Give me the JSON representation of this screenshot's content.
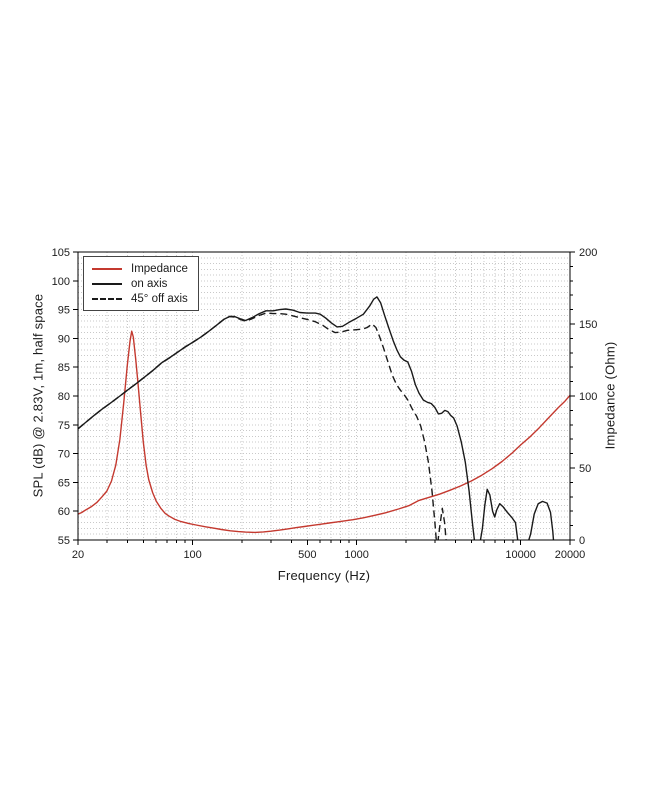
{
  "chart_data": {
    "type": "line",
    "title": "",
    "xlabel": "Frequency (Hz)",
    "ylabel_left": "SPL (dB) @ 2.83V, 1m, half space",
    "ylabel_right": "Impedance (Ohm)",
    "x_scale": "log",
    "xlim": [
      20,
      20000
    ],
    "ylim_left": [
      55,
      105
    ],
    "ylim_right": [
      0,
      200
    ],
    "x_labeled_ticks": [
      20,
      100,
      500,
      1000,
      10000,
      20000
    ],
    "y_left_major_step": 5,
    "y_left_minor_step": 1,
    "y_right_major_step": 50,
    "y_right_minor_step": 10,
    "grid": {
      "on": true,
      "color": "#c9c9c9",
      "style": "dotted"
    },
    "legend": {
      "position": "top-left",
      "items": [
        {
          "label": "Impedance",
          "color": "#c4392f",
          "dash": "solid"
        },
        {
          "label": "on axis",
          "color": "#1a1a1a",
          "dash": "solid"
        },
        {
          "label": "45° off axis",
          "color": "#1a1a1a",
          "dash": "dashed"
        }
      ]
    },
    "series": [
      {
        "name": "Impedance",
        "axis": "right",
        "unit": "Ohm",
        "color": "#c4392f",
        "dash": "solid",
        "points": [
          [
            20,
            18
          ],
          [
            21,
            19
          ],
          [
            22,
            20.5
          ],
          [
            24,
            23
          ],
          [
            26,
            26
          ],
          [
            28,
            30
          ],
          [
            30,
            34
          ],
          [
            32,
            41
          ],
          [
            34,
            52
          ],
          [
            36,
            70
          ],
          [
            38,
            95
          ],
          [
            40,
            122
          ],
          [
            41.5,
            138
          ],
          [
            42.5,
            145
          ],
          [
            43.5,
            141
          ],
          [
            45,
            125
          ],
          [
            46.5,
            108
          ],
          [
            48,
            90
          ],
          [
            50,
            68
          ],
          [
            52,
            52
          ],
          [
            54,
            42
          ],
          [
            57,
            33
          ],
          [
            60,
            27
          ],
          [
            64,
            22
          ],
          [
            68,
            18.5
          ],
          [
            72,
            16.5
          ],
          [
            78,
            14.3
          ],
          [
            85,
            12.8
          ],
          [
            95,
            11.4
          ],
          [
            105,
            10.4
          ],
          [
            120,
            9.2
          ],
          [
            135,
            8.2
          ],
          [
            150,
            7.3
          ],
          [
            170,
            6.4
          ],
          [
            190,
            5.8
          ],
          [
            210,
            5.5
          ],
          [
            240,
            5.3
          ],
          [
            270,
            5.6
          ],
          [
            300,
            6.1
          ],
          [
            340,
            6.9
          ],
          [
            380,
            7.7
          ],
          [
            430,
            8.6
          ],
          [
            480,
            9.4
          ],
          [
            540,
            10.2
          ],
          [
            600,
            10.9
          ],
          [
            680,
            11.8
          ],
          [
            760,
            12.6
          ],
          [
            850,
            13.3
          ],
          [
            950,
            14.1
          ],
          [
            1100,
            15.4
          ],
          [
            1300,
            17.2
          ],
          [
            1500,
            18.9
          ],
          [
            1800,
            21.5
          ],
          [
            2100,
            24
          ],
          [
            2400,
            27.5
          ],
          [
            2800,
            29.8
          ],
          [
            3200,
            31.8
          ],
          [
            3700,
            34.5
          ],
          [
            4300,
            37.5
          ],
          [
            5000,
            41
          ],
          [
            5800,
            45
          ],
          [
            6700,
            49.5
          ],
          [
            7700,
            54.5
          ],
          [
            8900,
            60.5
          ],
          [
            10000,
            66
          ],
          [
            11500,
            72
          ],
          [
            13000,
            78
          ],
          [
            15000,
            85.5
          ],
          [
            17000,
            92
          ],
          [
            18500,
            96
          ],
          [
            20000,
            100.5
          ]
        ]
      },
      {
        "name": "on axis",
        "axis": "left",
        "unit": "dB",
        "color": "#1a1a1a",
        "dash": "solid",
        "points": [
          [
            20,
            74.3
          ],
          [
            22,
            75.3
          ],
          [
            25,
            76.6
          ],
          [
            28,
            77.7
          ],
          [
            32,
            78.9
          ],
          [
            36,
            80
          ],
          [
            40,
            81
          ],
          [
            45,
            82.1
          ],
          [
            50,
            83.1
          ],
          [
            57,
            84.4
          ],
          [
            65,
            85.8
          ],
          [
            72,
            86.6
          ],
          [
            80,
            87.5
          ],
          [
            90,
            88.5
          ],
          [
            100,
            89.3
          ],
          [
            112,
            90.2
          ],
          [
            125,
            91.2
          ],
          [
            140,
            92.3
          ],
          [
            155,
            93.3
          ],
          [
            168,
            93.8
          ],
          [
            180,
            93.8
          ],
          [
            195,
            93.4
          ],
          [
            210,
            93.1
          ],
          [
            230,
            93.6
          ],
          [
            255,
            94.3
          ],
          [
            280,
            94.8
          ],
          [
            310,
            94.8
          ],
          [
            340,
            95
          ],
          [
            370,
            95.1
          ],
          [
            410,
            94.9
          ],
          [
            450,
            94.5
          ],
          [
            500,
            94.4
          ],
          [
            560,
            94.4
          ],
          [
            600,
            94.2
          ],
          [
            650,
            93.5
          ],
          [
            700,
            92.7
          ],
          [
            760,
            92
          ],
          [
            820,
            92.1
          ],
          [
            900,
            92.8
          ],
          [
            1000,
            93.5
          ],
          [
            1100,
            94.2
          ],
          [
            1200,
            95.6
          ],
          [
            1270,
            96.8
          ],
          [
            1330,
            97.2
          ],
          [
            1400,
            96.2
          ],
          [
            1480,
            94
          ],
          [
            1570,
            91.8
          ],
          [
            1670,
            89.6
          ],
          [
            1760,
            88
          ],
          [
            1850,
            86.8
          ],
          [
            1950,
            86.2
          ],
          [
            2050,
            85.9
          ],
          [
            2160,
            84.3
          ],
          [
            2280,
            82
          ],
          [
            2400,
            80.5
          ],
          [
            2550,
            79.3
          ],
          [
            2700,
            78.9
          ],
          [
            2850,
            78.7
          ],
          [
            3000,
            78
          ],
          [
            3150,
            76.9
          ],
          [
            3300,
            77
          ],
          [
            3450,
            77.5
          ],
          [
            3600,
            77.3
          ],
          [
            3750,
            76.6
          ],
          [
            3900,
            76.2
          ],
          [
            4100,
            74.8
          ],
          [
            4350,
            72
          ],
          [
            4600,
            68.5
          ],
          [
            4850,
            63.5
          ],
          [
            5100,
            57.5
          ],
          [
            5300,
            53.5
          ],
          [
            5600,
            53.8
          ],
          [
            5850,
            57
          ],
          [
            6050,
            61
          ],
          [
            6250,
            63.8
          ],
          [
            6500,
            62.8
          ],
          [
            6750,
            60
          ],
          [
            6950,
            59
          ],
          [
            7150,
            60.2
          ],
          [
            7450,
            61.3
          ],
          [
            7800,
            60.8
          ],
          [
            8300,
            59.8
          ],
          [
            8900,
            58.8
          ],
          [
            9300,
            58
          ],
          [
            9600,
            55
          ],
          [
            9900,
            52.5
          ],
          [
            10800,
            53.5
          ],
          [
            11500,
            56
          ],
          [
            12100,
            59.5
          ],
          [
            12800,
            61.3
          ],
          [
            13600,
            61.7
          ],
          [
            14500,
            61.4
          ],
          [
            15200,
            59.8
          ],
          [
            15700,
            56.5
          ],
          [
            16100,
            52.5
          ],
          [
            17500,
            50
          ],
          [
            20000,
            50
          ]
        ]
      },
      {
        "name": "45° off axis",
        "axis": "left",
        "unit": "dB",
        "color": "#1a1a1a",
        "dash": "dashed",
        "points": [
          [
            20,
            74.3
          ],
          [
            22,
            75.3
          ],
          [
            25,
            76.6
          ],
          [
            28,
            77.7
          ],
          [
            32,
            78.9
          ],
          [
            36,
            80
          ],
          [
            40,
            81
          ],
          [
            45,
            82.1
          ],
          [
            50,
            83.1
          ],
          [
            57,
            84.4
          ],
          [
            65,
            85.8
          ],
          [
            72,
            86.6
          ],
          [
            80,
            87.5
          ],
          [
            90,
            88.5
          ],
          [
            100,
            89.3
          ],
          [
            112,
            90.2
          ],
          [
            125,
            91.2
          ],
          [
            140,
            92.3
          ],
          [
            155,
            93.3
          ],
          [
            168,
            93.8
          ],
          [
            180,
            93.7
          ],
          [
            195,
            93.3
          ],
          [
            210,
            93
          ],
          [
            230,
            93.4
          ],
          [
            255,
            94
          ],
          [
            280,
            94.4
          ],
          [
            310,
            94.3
          ],
          [
            340,
            94.3
          ],
          [
            370,
            94.2
          ],
          [
            410,
            93.9
          ],
          [
            450,
            93.6
          ],
          [
            500,
            93.3
          ],
          [
            560,
            92.9
          ],
          [
            620,
            92.3
          ],
          [
            680,
            91.5
          ],
          [
            740,
            91
          ],
          [
            800,
            91.1
          ],
          [
            880,
            91.4
          ],
          [
            980,
            91.5
          ],
          [
            1080,
            91.6
          ],
          [
            1160,
            91.9
          ],
          [
            1240,
            92.5
          ],
          [
            1310,
            91.9
          ],
          [
            1380,
            90.3
          ],
          [
            1460,
            88.3
          ],
          [
            1550,
            86
          ],
          [
            1650,
            83.6
          ],
          [
            1750,
            82
          ],
          [
            1850,
            81
          ],
          [
            1950,
            80.2
          ],
          [
            2050,
            79.3
          ],
          [
            2180,
            77.8
          ],
          [
            2320,
            76.5
          ],
          [
            2460,
            74.8
          ],
          [
            2600,
            72
          ],
          [
            2740,
            68.5
          ],
          [
            2880,
            63.5
          ],
          [
            3000,
            58
          ],
          [
            3090,
            53.5
          ],
          [
            3220,
            57.5
          ],
          [
            3330,
            60.5
          ],
          [
            3440,
            58
          ],
          [
            3560,
            53
          ],
          [
            3700,
            50
          ],
          [
            4000,
            48
          ]
        ]
      }
    ]
  }
}
